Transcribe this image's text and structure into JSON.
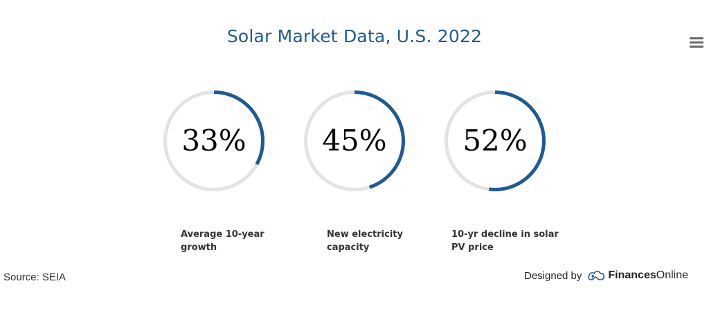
{
  "chart_data": {
    "type": "pie",
    "subtype": "progress-rings",
    "title": "Solar Market Data, U.S. 2022",
    "items": [
      {
        "value": 33,
        "display": "33%",
        "label_line1": "Average 10-year",
        "label_line2": "growth"
      },
      {
        "value": 45,
        "display": "45%",
        "label_line1": "New electricity",
        "label_line2": "capacity"
      },
      {
        "value": 52,
        "display": "52%",
        "label_line1": "10-yr decline in solar",
        "label_line2": "PV price"
      }
    ],
    "colors": {
      "fill": "#1f5a94",
      "track": "#e3e3e3"
    }
  },
  "menu": {
    "icon": "hamburger-menu-icon"
  },
  "footer": {
    "source": "Source: SEIA",
    "designed_by": "Designed by",
    "brand_bold": "Finances",
    "brand_light": "Online"
  }
}
